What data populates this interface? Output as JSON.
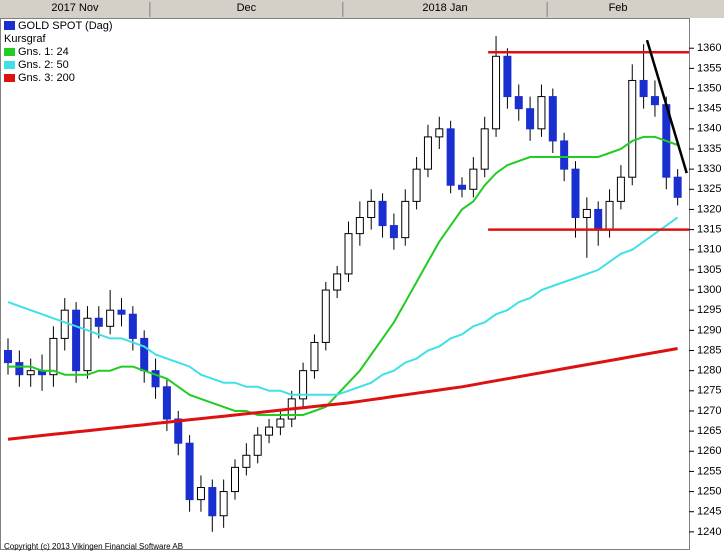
{
  "chart_data": {
    "type": "candlestick",
    "name": "GOLD SPOT (Dag)",
    "color": "#1a2fd0",
    "subtitle": "Kursgraf",
    "copyright": "Copyright (c) 2013 Vikingen Financial Software AB",
    "periods": [
      {
        "label": "2017 Nov",
        "start": 0,
        "end": 12
      },
      {
        "label": "Dec",
        "start": 13,
        "end": 29
      },
      {
        "label": "2018 Jan",
        "start": 30,
        "end": 47
      },
      {
        "label": "Feb",
        "start": 48,
        "end": 59
      }
    ],
    "open": [
      1285,
      1282,
      1279,
      1280,
      1279,
      1288,
      1295,
      1280,
      1293,
      1291,
      1295,
      1294,
      1288,
      1280,
      1276,
      1268,
      1262,
      1248,
      1251,
      1244,
      1250,
      1256,
      1259,
      1264,
      1266,
      1268,
      1273,
      1280,
      1287,
      1300,
      1304,
      1314,
      1318,
      1322,
      1316,
      1313,
      1322,
      1330,
      1338,
      1340,
      1326,
      1325,
      1330,
      1340,
      1358,
      1348,
      1345,
      1340,
      1348,
      1337,
      1330,
      1318,
      1320,
      1315,
      1322,
      1328,
      1352,
      1348,
      1346,
      1328
    ],
    "high": [
      1288,
      1285,
      1283,
      1284,
      1291,
      1298,
      1297,
      1296,
      1296,
      1300,
      1298,
      1296,
      1290,
      1283,
      1278,
      1270,
      1264,
      1254,
      1253,
      1253,
      1258,
      1262,
      1266,
      1268,
      1270,
      1275,
      1282,
      1289,
      1302,
      1306,
      1317,
      1322,
      1325,
      1324,
      1319,
      1325,
      1333,
      1341,
      1343,
      1342,
      1328,
      1333,
      1343,
      1363,
      1360,
      1351,
      1348,
      1351,
      1350,
      1339,
      1332,
      1323,
      1322,
      1325,
      1331,
      1356,
      1361,
      1352,
      1348,
      1330
    ],
    "low": [
      1279,
      1276,
      1276,
      1275,
      1276,
      1285,
      1277,
      1278,
      1288,
      1289,
      1291,
      1285,
      1277,
      1273,
      1265,
      1259,
      1245,
      1245,
      1240,
      1241,
      1248,
      1254,
      1257,
      1262,
      1264,
      1266,
      1271,
      1278,
      1285,
      1298,
      1302,
      1311,
      1315,
      1313,
      1310,
      1311,
      1320,
      1328,
      1335,
      1324,
      1323,
      1323,
      1328,
      1338,
      1345,
      1342,
      1337,
      1338,
      1334,
      1327,
      1313,
      1308,
      1311,
      1313,
      1320,
      1326,
      1345,
      1343,
      1325,
      1321
    ],
    "close": [
      1282,
      1279,
      1280,
      1279,
      1288,
      1295,
      1280,
      1293,
      1291,
      1295,
      1294,
      1288,
      1280,
      1276,
      1268,
      1262,
      1248,
      1251,
      1244,
      1250,
      1256,
      1259,
      1264,
      1266,
      1268,
      1273,
      1280,
      1287,
      1300,
      1304,
      1314,
      1318,
      1322,
      1316,
      1313,
      1322,
      1330,
      1338,
      1340,
      1326,
      1325,
      1330,
      1340,
      1358,
      1348,
      1345,
      1340,
      1348,
      1337,
      1330,
      1318,
      1320,
      1315,
      1322,
      1328,
      1352,
      1348,
      1346,
      1328,
      1323
    ],
    "series": [
      {
        "name": "Gns. 1: 24",
        "color": "#22cc22",
        "values": [
          1281,
          1281,
          1281,
          1280,
          1280,
          1279,
          1279,
          1279,
          1280,
          1280,
          1281,
          1281,
          1280,
          1279,
          1278,
          1276,
          1274,
          1273,
          1272,
          1271,
          1270,
          1270,
          1269,
          1269,
          1269,
          1269,
          1269,
          1270,
          1271,
          1274,
          1277,
          1280,
          1284,
          1288,
          1292,
          1297,
          1302,
          1307,
          1312,
          1316,
          1320,
          1322,
          1326,
          1329,
          1331,
          1332,
          1333,
          1333,
          1333,
          1333,
          1333,
          1333,
          1333,
          1334,
          1335,
          1337,
          1338,
          1338,
          1337,
          1336
        ]
      },
      {
        "name": "Gns. 2: 50",
        "color": "#40e0e8",
        "values": [
          1297,
          1296,
          1295,
          1294,
          1293,
          1292,
          1291,
          1290,
          1289,
          1288,
          1288,
          1287,
          1286,
          1284,
          1283,
          1282,
          1281,
          1279,
          1278,
          1277,
          1277,
          1276,
          1276,
          1275,
          1275,
          1274,
          1274,
          1274,
          1274,
          1274,
          1275,
          1276,
          1277,
          1279,
          1280,
          1282,
          1283,
          1285,
          1286,
          1288,
          1289,
          1291,
          1292,
          1294,
          1295,
          1297,
          1298,
          1300,
          1301,
          1302,
          1303,
          1304,
          1305,
          1307,
          1309,
          1310,
          1312,
          1314,
          1316,
          1318
        ]
      },
      {
        "name": "Gns. 3: 200",
        "color": "#dd1111",
        "values": [
          1263,
          1263.3,
          1263.6,
          1263.9,
          1264.2,
          1264.5,
          1264.8,
          1265.1,
          1265.4,
          1265.7,
          1266,
          1266.3,
          1266.6,
          1266.9,
          1267.2,
          1267.5,
          1267.8,
          1268.1,
          1268.4,
          1268.7,
          1269,
          1269.3,
          1269.6,
          1269.9,
          1270.2,
          1270.5,
          1270.8,
          1271.1,
          1271.4,
          1271.7,
          1272,
          1272.4,
          1272.8,
          1273.2,
          1273.6,
          1274,
          1274.4,
          1274.8,
          1275.2,
          1275.6,
          1276,
          1276.5,
          1277,
          1277.5,
          1278,
          1278.5,
          1279,
          1279.5,
          1280,
          1280.5,
          1281,
          1281.5,
          1282,
          1282.5,
          1283,
          1283.5,
          1284,
          1284.5,
          1285,
          1285.5
        ]
      }
    ],
    "lines": [
      {
        "x1": 42.3,
        "y1": 1359,
        "x2": 60,
        "y2": 1359,
        "color": "#dd1111"
      },
      {
        "x1": 42.3,
        "y1": 1315,
        "x2": 60,
        "y2": 1315,
        "color": "#dd1111"
      },
      {
        "x1": 56.3,
        "y1": 1362,
        "x2": 59.8,
        "y2": 1329,
        "color": "#000000"
      }
    ],
    "ylim": [
      1235.5,
      1367.5
    ],
    "yticks": [
      1240,
      1245,
      1250,
      1255,
      1260,
      1265,
      1270,
      1275,
      1280,
      1285,
      1290,
      1295,
      1300,
      1305,
      1310,
      1315,
      1320,
      1325,
      1330,
      1335,
      1340,
      1345,
      1350,
      1355,
      1360
    ]
  }
}
